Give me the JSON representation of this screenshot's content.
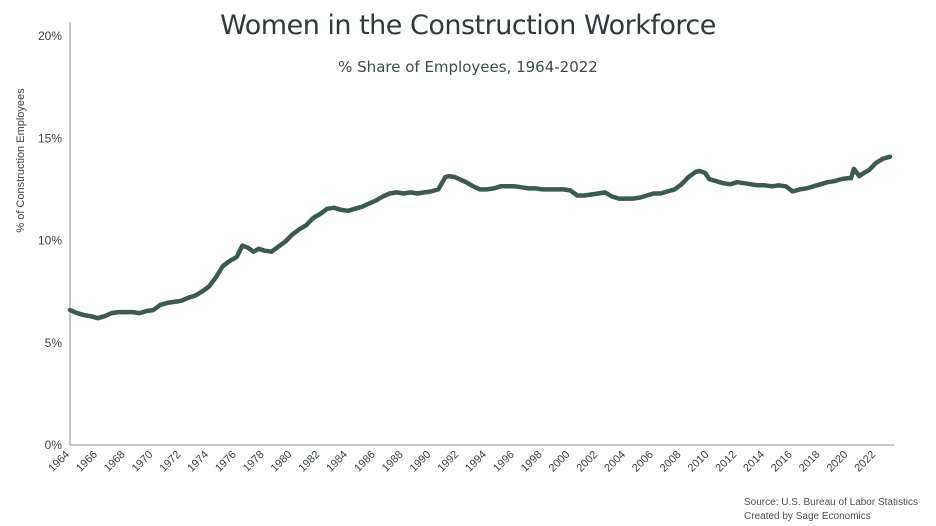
{
  "chart_data": {
    "type": "line",
    "title": "Women in the Construction Workforce",
    "subtitle": "% Share of Employees, 1964-2022",
    "xlabel": "",
    "ylabel": "% of Construction Employees",
    "xlim": [
      1964,
      2023
    ],
    "ylim": [
      0,
      20
    ],
    "x_ticks": [
      "1964",
      "1966",
      "1968",
      "1970",
      "1972",
      "1974",
      "1976",
      "1978",
      "1980",
      "1982",
      "1984",
      "1986",
      "1988",
      "1990",
      "1992",
      "1994",
      "1996",
      "1998",
      "2000",
      "2002",
      "2004",
      "2006",
      "2008",
      "2010",
      "2012",
      "2014",
      "2016",
      "2018",
      "2020",
      "2022"
    ],
    "y_ticks": [
      "0%",
      "5%",
      "10%",
      "15%",
      "20%"
    ],
    "grid": false,
    "color": "#3b5a52",
    "series": [
      {
        "x": [
          1964.0,
          1964.5,
          1965.0,
          1965.5,
          1966.0,
          1966.5,
          1967.0,
          1967.5,
          1968.0,
          1968.5,
          1969.0,
          1969.5,
          1970.0,
          1970.5,
          1971.0,
          1971.5,
          1972.0,
          1972.5,
          1973.0,
          1973.5,
          1974.0,
          1974.5,
          1975.0,
          1975.5,
          1976.0,
          1976.4,
          1976.8,
          1977.2,
          1977.6,
          1978.0,
          1978.5,
          1979.0,
          1979.5,
          1980.0,
          1980.5,
          1981.0,
          1981.5,
          1982.0,
          1982.5,
          1983.0,
          1983.5,
          1984.0,
          1984.5,
          1985.0,
          1985.5,
          1986.0,
          1986.5,
          1987.0,
          1987.5,
          1988.0,
          1988.5,
          1989.0,
          1989.5,
          1990.0,
          1990.5,
          1991.0,
          1991.3,
          1991.7,
          1992.0,
          1992.5,
          1993.0,
          1993.5,
          1994.0,
          1994.5,
          1995.0,
          1995.5,
          1996.0,
          1996.5,
          1997.0,
          1997.5,
          1998.0,
          1998.5,
          1999.0,
          1999.5,
          2000.0,
          2000.5,
          2001.0,
          2001.5,
          2002.0,
          2002.5,
          2003.0,
          2003.5,
          2004.0,
          2004.5,
          2005.0,
          2005.5,
          2006.0,
          2006.5,
          2007.0,
          2007.5,
          2008.0,
          2008.5,
          2009.0,
          2009.3,
          2009.7,
          2010.0,
          2010.5,
          2011.0,
          2011.5,
          2012.0,
          2012.5,
          2013.0,
          2013.5,
          2014.0,
          2014.5,
          2015.0,
          2015.5,
          2016.0,
          2016.5,
          2017.0,
          2017.5,
          2018.0,
          2018.5,
          2019.0,
          2019.5,
          2020.0,
          2020.2,
          2020.4,
          2020.8,
          2021.0,
          2021.5,
          2022.0,
          2022.5,
          2023.0
        ],
        "y": [
          6.6,
          6.45,
          6.35,
          6.3,
          6.2,
          6.3,
          6.45,
          6.5,
          6.5,
          6.5,
          6.45,
          6.55,
          6.6,
          6.85,
          6.95,
          7.0,
          7.05,
          7.2,
          7.3,
          7.5,
          7.75,
          8.2,
          8.75,
          9.0,
          9.2,
          9.75,
          9.65,
          9.45,
          9.6,
          9.5,
          9.45,
          9.7,
          9.95,
          10.3,
          10.55,
          10.75,
          11.1,
          11.3,
          11.55,
          11.6,
          11.5,
          11.45,
          11.55,
          11.65,
          11.8,
          11.95,
          12.15,
          12.3,
          12.35,
          12.3,
          12.35,
          12.3,
          12.35,
          12.4,
          12.5,
          13.1,
          13.15,
          13.1,
          13.0,
          12.85,
          12.65,
          12.5,
          12.5,
          12.55,
          12.65,
          12.65,
          12.65,
          12.6,
          12.55,
          12.55,
          12.5,
          12.5,
          12.5,
          12.5,
          12.45,
          12.2,
          12.2,
          12.25,
          12.3,
          12.35,
          12.15,
          12.05,
          12.05,
          12.05,
          12.1,
          12.2,
          12.3,
          12.3,
          12.4,
          12.5,
          12.75,
          13.1,
          13.35,
          13.4,
          13.3,
          13.0,
          12.9,
          12.8,
          12.75,
          12.85,
          12.8,
          12.75,
          12.7,
          12.7,
          12.65,
          12.7,
          12.65,
          12.4,
          12.5,
          12.55,
          12.65,
          12.75,
          12.85,
          12.9,
          13.0,
          13.05,
          13.05,
          13.5,
          13.15,
          13.25,
          13.45,
          13.8,
          14.0,
          14.1
        ]
      }
    ]
  },
  "source": {
    "line1": "Source: U.S. Bureau of Labor Statistics",
    "line2": "Created by Sage Economics"
  }
}
